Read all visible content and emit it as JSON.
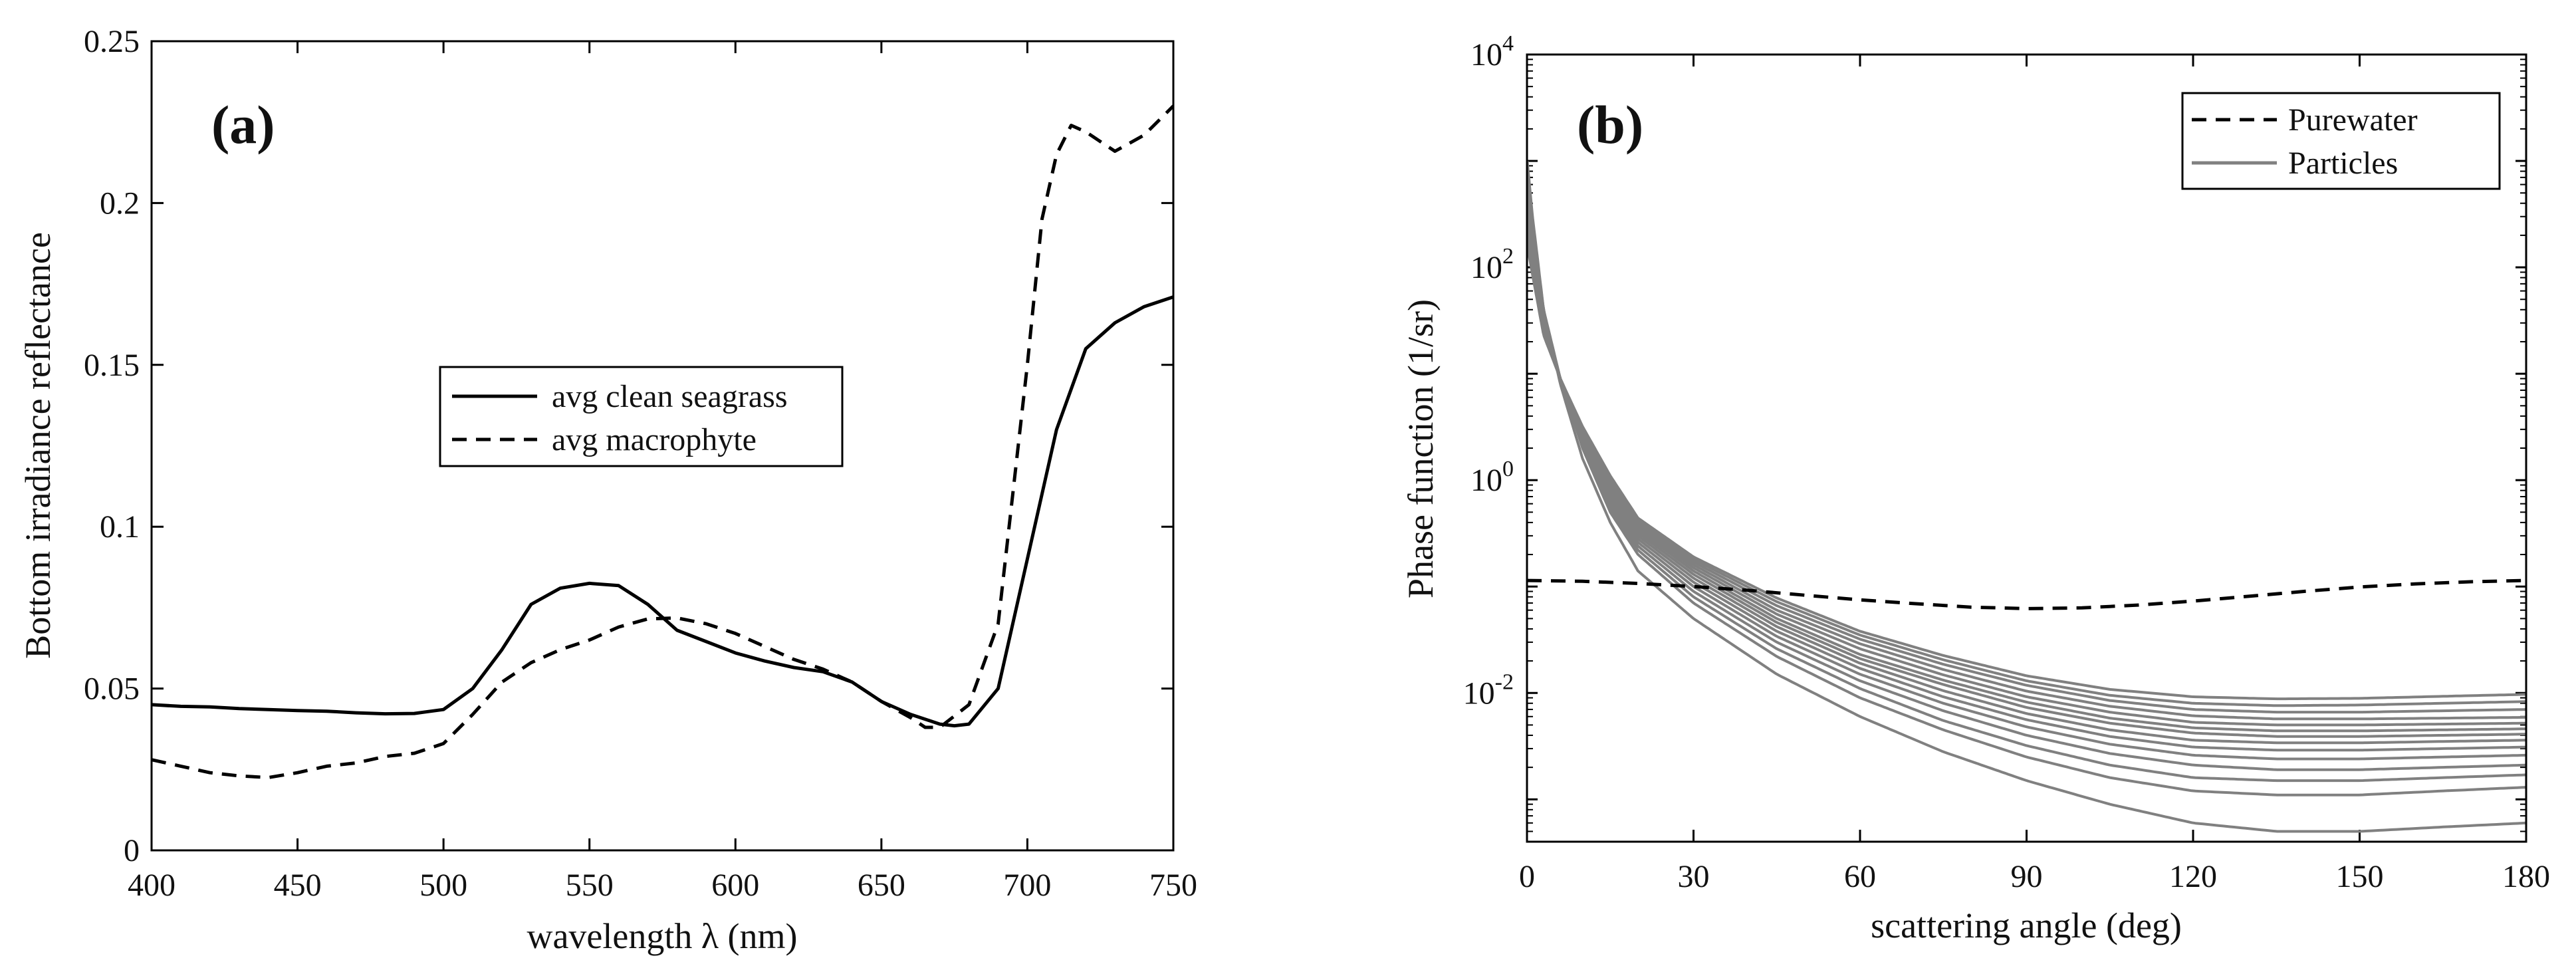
{
  "chart_data": [
    {
      "type": "line",
      "panel_label": "(a)",
      "xlabel": "wavelength λ (nm)",
      "ylabel": "Bottom irradiance reflectance",
      "xlim": [
        400,
        750
      ],
      "ylim": [
        0,
        0.25
      ],
      "xticks": [
        "400",
        "450",
        "500",
        "550",
        "600",
        "650",
        "700",
        "750"
      ],
      "yticks": [
        "0",
        "0.05",
        "0.1",
        "0.15",
        "0.2",
        "0.25"
      ],
      "grid": false,
      "legend_position": "center",
      "series": [
        {
          "name": "avg clean seagrass",
          "style": "solid",
          "color": "#000000",
          "x": [
            400,
            410,
            420,
            430,
            440,
            450,
            460,
            470,
            480,
            490,
            500,
            510,
            520,
            530,
            540,
            550,
            560,
            570,
            580,
            590,
            600,
            610,
            620,
            630,
            640,
            650,
            660,
            670,
            675,
            680,
            690,
            700,
            710,
            720,
            730,
            740,
            750
          ],
          "y": [
            0.045,
            0.0445,
            0.0443,
            0.0438,
            0.0435,
            0.0432,
            0.043,
            0.0425,
            0.0422,
            0.0423,
            0.0435,
            0.05,
            0.062,
            0.076,
            0.081,
            0.0825,
            0.0818,
            0.076,
            0.068,
            0.0645,
            0.061,
            0.0585,
            0.0565,
            0.0552,
            0.052,
            0.046,
            0.042,
            0.039,
            0.0385,
            0.039,
            0.05,
            0.09,
            0.13,
            0.155,
            0.163,
            0.168,
            0.171
          ]
        },
        {
          "name": "avg macrophyte",
          "style": "dashed",
          "color": "#000000",
          "x": [
            400,
            410,
            420,
            430,
            440,
            450,
            460,
            470,
            480,
            490,
            500,
            510,
            520,
            530,
            540,
            550,
            560,
            570,
            580,
            590,
            600,
            610,
            620,
            630,
            640,
            650,
            660,
            665,
            670,
            680,
            690,
            700,
            705,
            710,
            715,
            720,
            730,
            740,
            750
          ],
          "y": [
            0.028,
            0.026,
            0.024,
            0.023,
            0.0225,
            0.024,
            0.026,
            0.027,
            0.029,
            0.03,
            0.033,
            0.042,
            0.052,
            0.058,
            0.062,
            0.065,
            0.069,
            0.0715,
            0.0718,
            0.07,
            0.067,
            0.063,
            0.059,
            0.056,
            0.052,
            0.046,
            0.041,
            0.038,
            0.038,
            0.045,
            0.07,
            0.15,
            0.195,
            0.215,
            0.224,
            0.222,
            0.216,
            0.221,
            0.23
          ]
        }
      ]
    },
    {
      "type": "line",
      "panel_label": "(b)",
      "xlabel": "scattering angle (deg)",
      "ylabel": "Phase function (1/sr)",
      "xlim": [
        0,
        180
      ],
      "yscale": "log",
      "ylim": [
        0.0004,
        10000
      ],
      "xticks": [
        "0",
        "30",
        "60",
        "90",
        "120",
        "150",
        "180"
      ],
      "yticks": [
        {
          "base": "10",
          "exp": "-2"
        },
        {
          "base": "10",
          "exp": "0"
        },
        {
          "base": "10",
          "exp": "2"
        },
        {
          "base": "10",
          "exp": "4"
        }
      ],
      "grid": false,
      "legend_position": "top-right",
      "series": [
        {
          "name": "Purewater",
          "style": "dashed",
          "color": "#000000",
          "x": [
            0,
            10,
            20,
            30,
            40,
            50,
            60,
            70,
            80,
            90,
            100,
            110,
            120,
            130,
            140,
            150,
            160,
            170,
            180
          ],
          "y": [
            0.114,
            0.112,
            0.107,
            0.1,
            0.092,
            0.083,
            0.075,
            0.069,
            0.064,
            0.062,
            0.063,
            0.067,
            0.073,
            0.081,
            0.09,
            0.099,
            0.106,
            0.111,
            0.114
          ]
        },
        {
          "name": "Particles",
          "style": "solid",
          "color": "#808080",
          "x_anchors": [
            0.05,
            1,
            3,
            6,
            10,
            15,
            20,
            30,
            45,
            60,
            75,
            90,
            105,
            120,
            135,
            150,
            165,
            180
          ],
          "curves": [
            [
              1000,
              300,
              40,
              8,
              1.6,
              0.4,
              0.14,
              0.05,
              0.015,
              0.006,
              0.0028,
              0.0015,
              0.0009,
              0.0006,
              0.0005,
              0.0005,
              0.00055,
              0.0006
            ],
            [
              700,
              250,
              40,
              9,
              2.0,
              0.5,
              0.2,
              0.07,
              0.022,
              0.009,
              0.0045,
              0.0025,
              0.0016,
              0.0012,
              0.0011,
              0.0011,
              0.0012,
              0.0013
            ],
            [
              600,
              220,
              38,
              9,
              2.1,
              0.55,
              0.22,
              0.08,
              0.026,
              0.011,
              0.0055,
              0.0032,
              0.0021,
              0.0016,
              0.0015,
              0.0015,
              0.0016,
              0.0017
            ],
            [
              520,
              200,
              36,
              9,
              2.2,
              0.6,
              0.24,
              0.09,
              0.03,
              0.013,
              0.0068,
              0.004,
              0.0027,
              0.0021,
              0.0019,
              0.0019,
              0.002,
              0.0021
            ],
            [
              450,
              180,
              34,
              9,
              2.3,
              0.65,
              0.26,
              0.1,
              0.034,
              0.015,
              0.008,
              0.0048,
              0.0033,
              0.0026,
              0.0024,
              0.0024,
              0.0025,
              0.0026
            ],
            [
              400,
              165,
              32,
              9,
              2.4,
              0.7,
              0.28,
              0.11,
              0.038,
              0.017,
              0.0092,
              0.0056,
              0.0039,
              0.0031,
              0.0029,
              0.0029,
              0.003,
              0.0031
            ],
            [
              360,
              150,
              30,
              9,
              2.5,
              0.75,
              0.3,
              0.12,
              0.042,
              0.019,
              0.0105,
              0.0064,
              0.0045,
              0.0036,
              0.0034,
              0.0034,
              0.0035,
              0.0036
            ],
            [
              320,
              140,
              29,
              9,
              2.6,
              0.8,
              0.32,
              0.13,
              0.046,
              0.021,
              0.012,
              0.0073,
              0.0052,
              0.0042,
              0.0039,
              0.0039,
              0.004,
              0.0041
            ],
            [
              290,
              130,
              28,
              9,
              2.7,
              0.85,
              0.34,
              0.14,
              0.05,
              0.023,
              0.0132,
              0.0082,
              0.0058,
              0.0047,
              0.0044,
              0.0044,
              0.0045,
              0.0046
            ],
            [
              260,
              120,
              27,
              9,
              2.8,
              0.9,
              0.36,
              0.15,
              0.055,
              0.026,
              0.0148,
              0.0092,
              0.0066,
              0.0053,
              0.005,
              0.005,
              0.0051,
              0.0052
            ],
            [
              230,
              110,
              26,
              9,
              2.9,
              0.95,
              0.38,
              0.16,
              0.06,
              0.029,
              0.0166,
              0.0104,
              0.0075,
              0.0061,
              0.0057,
              0.0057,
              0.0058,
              0.0059
            ],
            [
              200,
              100,
              25,
              9,
              3.0,
              1.0,
              0.4,
              0.17,
              0.066,
              0.032,
              0.0186,
              0.0118,
              0.0085,
              0.007,
              0.0066,
              0.0066,
              0.0068,
              0.007
            ],
            [
              180,
              92,
              24,
              9,
              3.1,
              1.05,
              0.42,
              0.18,
              0.072,
              0.035,
              0.0205,
              0.013,
              0.0095,
              0.008,
              0.0076,
              0.0077,
              0.008,
              0.0083
            ],
            [
              160,
              85,
              23,
              9,
              3.2,
              1.1,
              0.44,
              0.19,
              0.078,
              0.038,
              0.0225,
              0.0145,
              0.0108,
              0.0092,
              0.0088,
              0.0089,
              0.0093,
              0.0097
            ]
          ]
        }
      ]
    }
  ]
}
